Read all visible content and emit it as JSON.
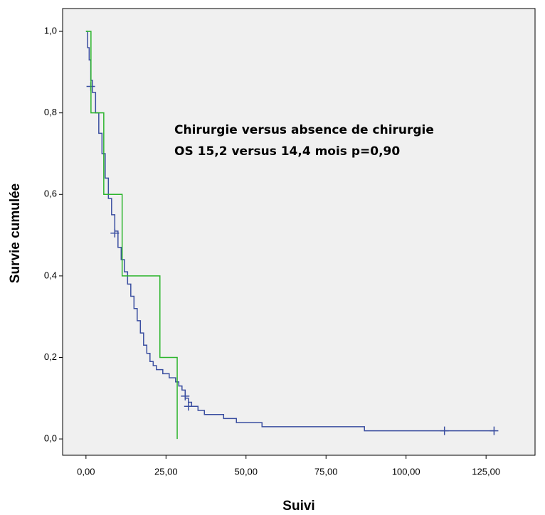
{
  "chart_data": {
    "type": "line",
    "drawstyle": "steps-post",
    "annotations": [
      "Chirurgie versus absence de chirurgie",
      "OS 15,2 versus 14,4 mois  p=0,90"
    ],
    "xlabel": "Suivi",
    "ylabel": "Survie cumulée",
    "xlim": [
      -7.3,
      140.3
    ],
    "ylim": [
      -0.04,
      1.056
    ],
    "xticks": [
      {
        "value": 0,
        "label": "0,00"
      },
      {
        "value": 25,
        "label": "25,00"
      },
      {
        "value": 50,
        "label": "50,00"
      },
      {
        "value": 75,
        "label": "75,00"
      },
      {
        "value": 100,
        "label": "100,00"
      },
      {
        "value": 125,
        "label": "125,00"
      }
    ],
    "yticks": [
      {
        "value": 0,
        "label": "0,0"
      },
      {
        "value": 0.2,
        "label": "0,2"
      },
      {
        "value": 0.4,
        "label": "0,4"
      },
      {
        "value": 0.6,
        "label": "0,6"
      },
      {
        "value": 0.8,
        "label": "0,8"
      },
      {
        "value": 1,
        "label": "1,0"
      }
    ],
    "series": [
      {
        "color": "#3a4ea0",
        "x": [
          0,
          0.5,
          1,
          1.5,
          2,
          3,
          4,
          5,
          6,
          7,
          8,
          9,
          10,
          11,
          12,
          13,
          14,
          15,
          16,
          17,
          18,
          19,
          20,
          21,
          22,
          24,
          26,
          28,
          29,
          30,
          31,
          32,
          33,
          35,
          37,
          43,
          47,
          55,
          87,
          127.5
        ],
        "values": [
          1.0,
          0.96,
          0.93,
          0.88,
          0.85,
          0.8,
          0.75,
          0.7,
          0.64,
          0.59,
          0.55,
          0.51,
          0.47,
          0.44,
          0.41,
          0.38,
          0.35,
          0.32,
          0.29,
          0.26,
          0.23,
          0.21,
          0.19,
          0.18,
          0.17,
          0.16,
          0.15,
          0.14,
          0.13,
          0.12,
          0.1,
          0.09,
          0.08,
          0.07,
          0.06,
          0.05,
          0.04,
          0.03,
          0.02,
          0.02
        ],
        "censor_x": [
          1.5,
          9,
          31,
          32,
          112,
          127.5
        ],
        "censor_values": [
          0.865,
          0.505,
          0.105,
          0.08,
          0.02,
          0.02
        ]
      },
      {
        "color": "#2db52d",
        "x": [
          0,
          1.56,
          5.56,
          11.3,
          23.1,
          28.5
        ],
        "values": [
          1.0,
          0.8,
          0.6,
          0.4,
          0.2,
          0
        ],
        "censor_x": [],
        "censor_values": []
      }
    ]
  }
}
